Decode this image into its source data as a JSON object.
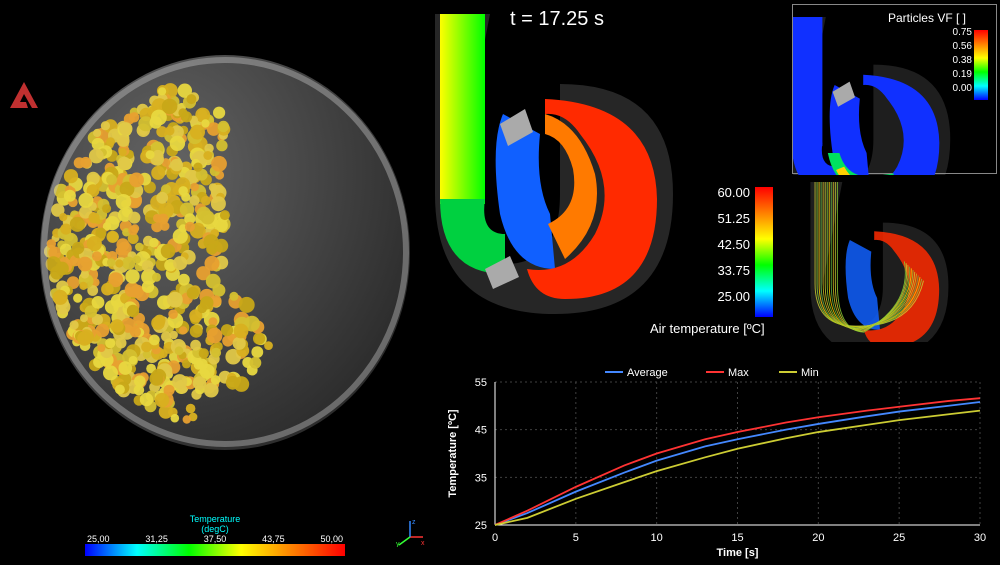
{
  "time": {
    "label": "t = 17.25 s",
    "value": 17.25
  },
  "logo_color": "#c03030",
  "drum": {
    "particle_hue": "#d4c840",
    "shell_color": "rgba(150,150,150,0.35)"
  },
  "temp_colorbar": {
    "title": "Temperature",
    "unit": "(degC)",
    "ticks": [
      "25,00",
      "31,25",
      "37,50",
      "43,75",
      "50,00"
    ]
  },
  "air_temp_scale": {
    "label": "Air temperature [ºC]",
    "ticks": [
      "60.00",
      "51.25",
      "42.50",
      "33.75",
      "25.00"
    ]
  },
  "particle_vf": {
    "label": "Particles VF [ ]",
    "ticks": [
      "0.75",
      "0.56",
      "0.38",
      "0.19",
      "0.00"
    ]
  },
  "chart": {
    "xlabel": "Time [s]",
    "ylabel": "Temperature [ºC]",
    "xlim": [
      0,
      30
    ],
    "ylim": [
      25,
      55
    ],
    "xticks": [
      0,
      5,
      10,
      15,
      20,
      25,
      30
    ],
    "yticks": [
      25,
      35,
      45,
      55
    ],
    "grid_color": "#404040",
    "background": "#000000",
    "legend": [
      {
        "name": "Average",
        "color": "#4488ff"
      },
      {
        "name": "Max",
        "color": "#ff3333"
      },
      {
        "name": "Min",
        "color": "#cccc33"
      }
    ],
    "series": {
      "average": {
        "color": "#4488ff",
        "data": [
          [
            0,
            25
          ],
          [
            2,
            27.5
          ],
          [
            5,
            32
          ],
          [
            8,
            36
          ],
          [
            10,
            38.5
          ],
          [
            13,
            41.5
          ],
          [
            15,
            43
          ],
          [
            18,
            45
          ],
          [
            20,
            46.2
          ],
          [
            23,
            47.8
          ],
          [
            25,
            48.8
          ],
          [
            28,
            50
          ],
          [
            30,
            50.8
          ]
        ]
      },
      "max": {
        "color": "#ff3333",
        "data": [
          [
            0,
            25
          ],
          [
            2,
            28
          ],
          [
            5,
            33
          ],
          [
            8,
            37.5
          ],
          [
            10,
            40
          ],
          [
            13,
            43
          ],
          [
            15,
            44.5
          ],
          [
            18,
            46.5
          ],
          [
            20,
            47.6
          ],
          [
            23,
            49
          ],
          [
            25,
            49.8
          ],
          [
            28,
            51
          ],
          [
            30,
            51.6
          ]
        ]
      },
      "min": {
        "color": "#cccc33",
        "data": [
          [
            0,
            25
          ],
          [
            2,
            26.5
          ],
          [
            5,
            30.5
          ],
          [
            8,
            34
          ],
          [
            10,
            36.3
          ],
          [
            13,
            39.2
          ],
          [
            15,
            41
          ],
          [
            18,
            43.2
          ],
          [
            20,
            44.5
          ],
          [
            23,
            46
          ],
          [
            25,
            47
          ],
          [
            28,
            48.2
          ],
          [
            30,
            49
          ]
        ]
      }
    }
  },
  "axis_colors": {
    "x": "#ff3333",
    "y": "#33ff33",
    "z": "#3388ff"
  }
}
